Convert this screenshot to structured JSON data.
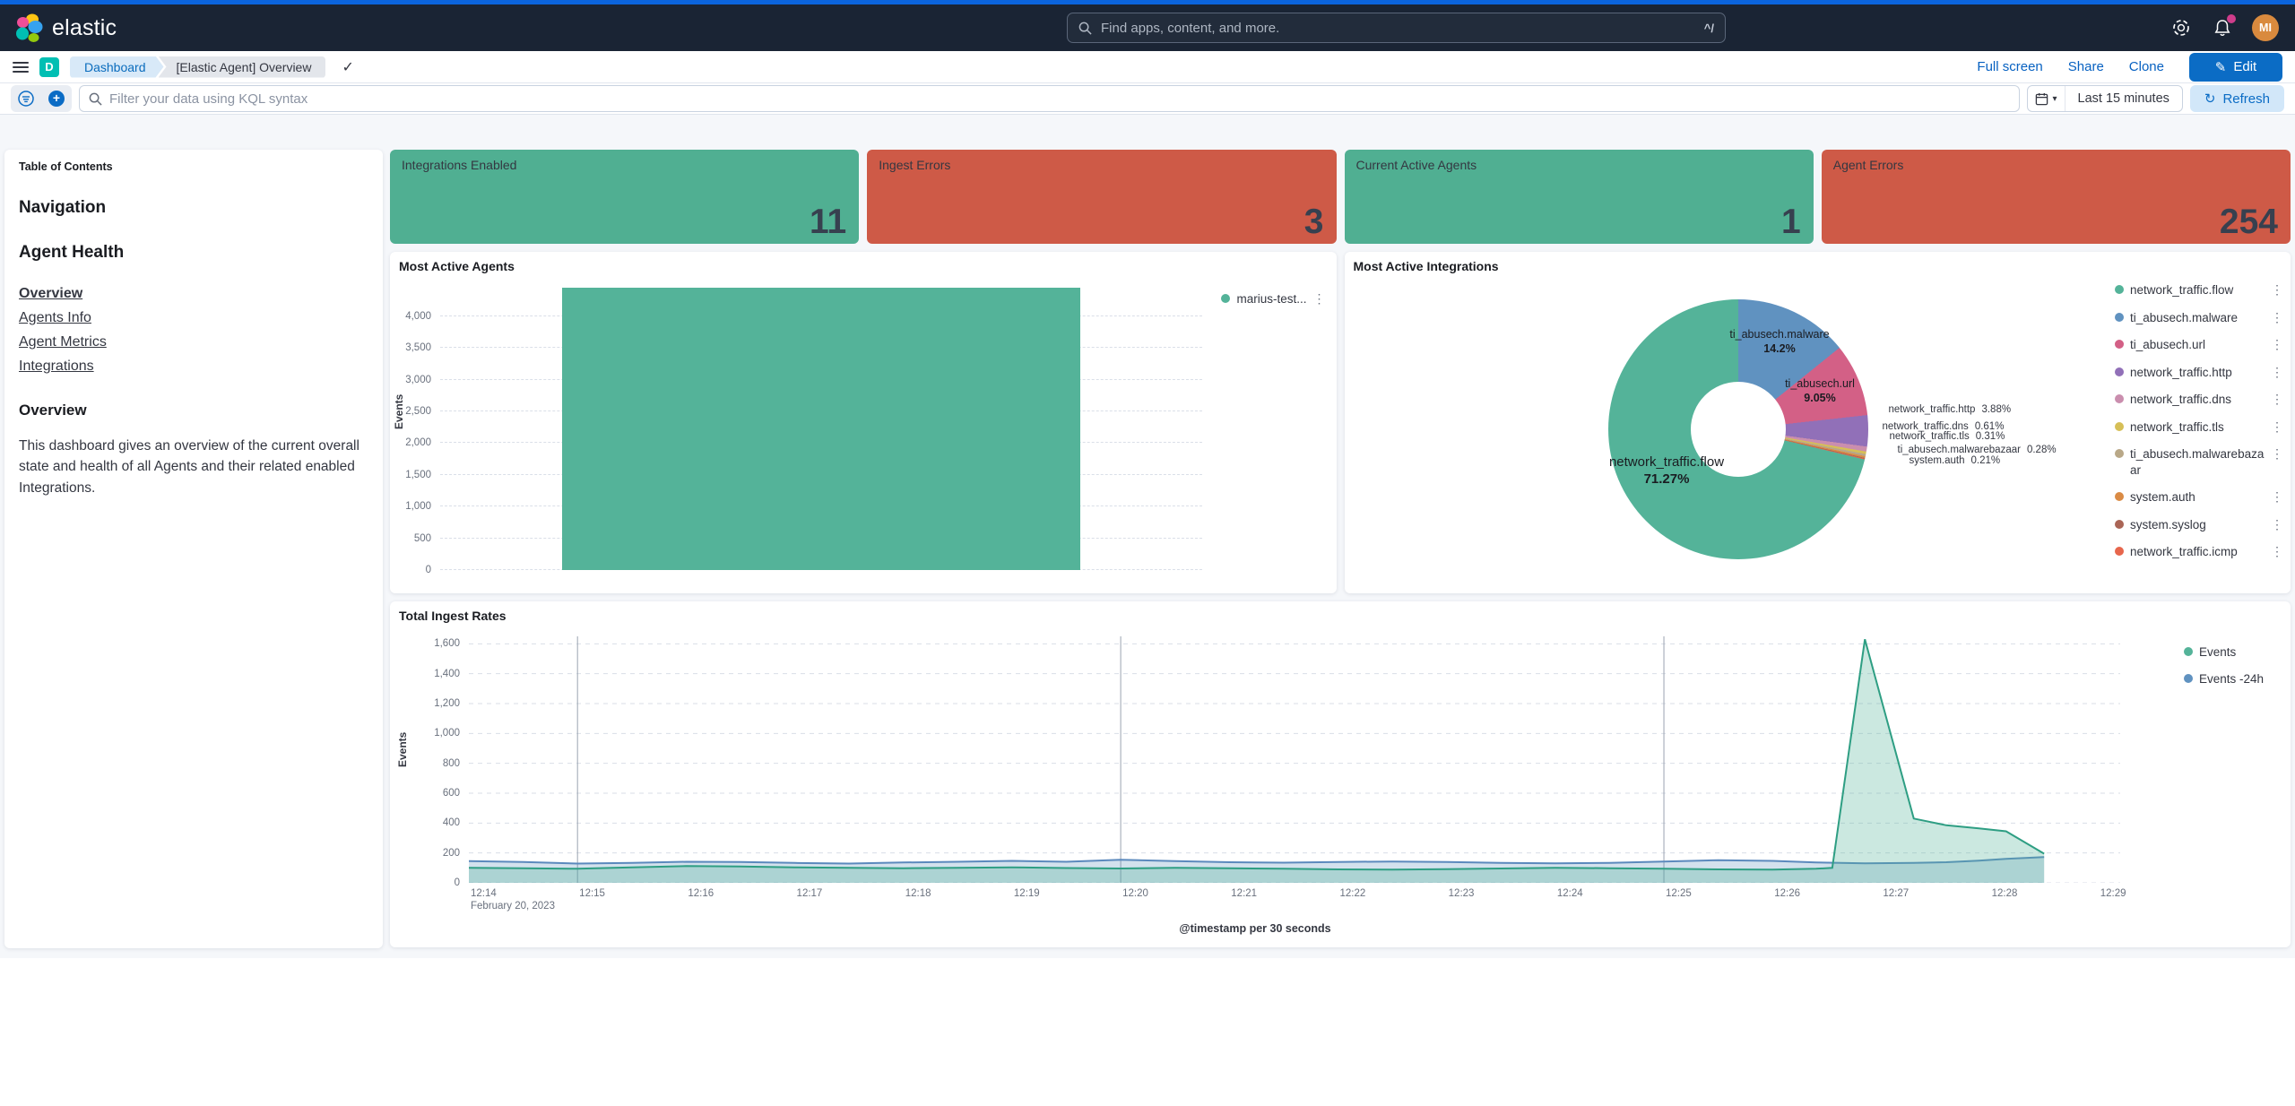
{
  "header": {
    "logo_text": "elastic",
    "search_placeholder": "Find apps, content, and more.",
    "search_shortcut": "^/",
    "avatar_initials": "MI"
  },
  "toolbar": {
    "app_badge": "D",
    "breadcrumbs": [
      "Dashboard",
      "[Elastic Agent] Overview"
    ],
    "actions": [
      "Full screen",
      "Share",
      "Clone"
    ],
    "edit_label": "Edit"
  },
  "filter_bar": {
    "kql_placeholder": "Filter your data using KQL syntax",
    "time_range": "Last 15 minutes",
    "refresh_label": "Refresh"
  },
  "sidebar": {
    "title": "Table of Contents",
    "sections": [
      "Navigation",
      "Agent Health"
    ],
    "links": [
      {
        "label": "Overview",
        "bold": true
      },
      {
        "label": "Agents Info",
        "bold": false
      },
      {
        "label": "Agent Metrics",
        "bold": false
      },
      {
        "label": "Integrations",
        "bold": false
      }
    ],
    "overview_heading": "Overview",
    "overview_text": "This dashboard gives an overview of the current overall state and health of all Agents and their related enabled Integrations."
  },
  "tiles": [
    {
      "label": "Integrations Enabled",
      "value": "11",
      "color": "#50af92"
    },
    {
      "label": "Ingest Errors",
      "value": "3",
      "color": "#ce5a47"
    },
    {
      "label": "Current Active Agents",
      "value": "1",
      "color": "#50af92"
    },
    {
      "label": "Agent Errors",
      "value": "254",
      "color": "#ce5a47"
    }
  ],
  "colors": {
    "primary": "#0b6cc5",
    "header_accent": "#0b64dd",
    "badge_teal": "#00bfb3",
    "notification_pink": "#cf3d8b"
  },
  "chart_data": [
    {
      "type": "bar",
      "title": "Most Active Agents",
      "ylabel": "Events",
      "categories": [
        "marius-test..."
      ],
      "values": [
        4450
      ],
      "ylim": [
        0,
        4450
      ],
      "yticks": [
        0,
        500,
        1000,
        1500,
        2000,
        2500,
        3000,
        3500,
        4000
      ],
      "bar_color": "#54B399",
      "grid": true,
      "legend_position": "right-top",
      "legend": [
        {
          "label": "marius-test...",
          "color": "#54B399"
        }
      ]
    },
    {
      "type": "pie",
      "title": "Most Active Integrations",
      "donut": true,
      "legend_position": "right",
      "slices": [
        {
          "name": "network_traffic.flow",
          "pct": 71.27,
          "color": "#54B399"
        },
        {
          "name": "ti_abusech.malware",
          "pct": 14.2,
          "color": "#6092C0"
        },
        {
          "name": "ti_abusech.url",
          "pct": 9.05,
          "color": "#D36086"
        },
        {
          "name": "network_traffic.http",
          "pct": 3.88,
          "color": "#9170B8"
        },
        {
          "name": "network_traffic.dns",
          "pct": 0.61,
          "color": "#CA8EAE"
        },
        {
          "name": "network_traffic.tls",
          "pct": 0.31,
          "color": "#D6BF57"
        },
        {
          "name": "ti_abusech.malwarebazaar",
          "pct": 0.28,
          "color": "#B9A888"
        },
        {
          "name": "system.auth",
          "pct": 0.21,
          "color": "#DA8B45"
        },
        {
          "name": "system.syslog",
          "pct": 0.1,
          "color": "#AA6556"
        },
        {
          "name": "network_traffic.icmp",
          "pct": 0.09,
          "color": "#E7664C"
        }
      ],
      "draw_order": [
        1,
        2,
        3,
        4,
        5,
        6,
        7,
        8,
        9,
        0
      ],
      "inner_labels": [
        {
          "name": "ti_abusech.malware",
          "pct": "14.2%"
        },
        {
          "name": "ti_abusech.url",
          "pct": "9.05%"
        },
        {
          "name": "network_traffic.flow",
          "pct": "71.27%"
        }
      ],
      "callouts": [
        {
          "label": "network_traffic.http",
          "pct": "3.88%"
        },
        {
          "label": "network_traffic.dns",
          "pct": "0.61%"
        },
        {
          "label": "network_traffic.tls",
          "pct": "0.31%"
        },
        {
          "label": "ti_abusech.malwarebazaar",
          "pct": "0.28%"
        },
        {
          "label": "system.auth",
          "pct": "0.21%"
        }
      ]
    },
    {
      "type": "area",
      "title": "Total Ingest Rates",
      "ylabel": "Events",
      "xlabel": "@timestamp per 30 seconds",
      "x_context": "February 20, 2023",
      "xticks": [
        "12:14",
        "12:15",
        "12:16",
        "12:17",
        "12:18",
        "12:19",
        "12:20",
        "12:21",
        "12:22",
        "12:23",
        "12:24",
        "12:25",
        "12:26",
        "12:27",
        "12:28",
        "12:29"
      ],
      "x_domain_minutes": [
        0,
        15.2
      ],
      "major_vlines_minutes": [
        1,
        6,
        11
      ],
      "yticks": [
        0,
        200,
        400,
        600,
        800,
        1000,
        1200,
        1400,
        1600
      ],
      "ylim": [
        0,
        1650
      ],
      "grid": true,
      "legend_position": "right-top",
      "series": [
        {
          "name": "Events",
          "color": "#2e9e83",
          "fill": "rgba(84,179,153,0.30)",
          "points": [
            [
              0,
              100
            ],
            [
              0.5,
              97
            ],
            [
              1,
              94
            ],
            [
              1.5,
              104
            ],
            [
              2,
              112
            ],
            [
              2.5,
              109
            ],
            [
              3,
              104
            ],
            [
              3.5,
              100
            ],
            [
              4,
              98
            ],
            [
              4.5,
              101
            ],
            [
              5,
              104
            ],
            [
              5.5,
              99
            ],
            [
              6,
              96
            ],
            [
              6.5,
              100
            ],
            [
              7,
              98
            ],
            [
              7.5,
              94
            ],
            [
              8,
              90
            ],
            [
              8.5,
              88
            ],
            [
              9,
              91
            ],
            [
              9.5,
              96
            ],
            [
              10,
              101
            ],
            [
              10.5,
              98
            ],
            [
              11,
              94
            ],
            [
              11.5,
              90
            ],
            [
              12,
              88
            ],
            [
              12.4,
              94
            ],
            [
              12.55,
              100
            ],
            [
              12.85,
              1630
            ],
            [
              13.3,
              430
            ],
            [
              13.6,
              385
            ],
            [
              13.9,
              365
            ],
            [
              14.15,
              345
            ],
            [
              14.5,
              195
            ]
          ]
        },
        {
          "name": "Events -24h",
          "color": "#5b89bd",
          "fill": "rgba(96,146,192,0.28)",
          "points": [
            [
              0,
              146
            ],
            [
              0.5,
              139
            ],
            [
              1,
              129
            ],
            [
              1.5,
              133
            ],
            [
              2,
              141
            ],
            [
              2.5,
              139
            ],
            [
              3,
              133
            ],
            [
              3.5,
              129
            ],
            [
              4,
              136
            ],
            [
              4.5,
              141
            ],
            [
              5,
              147
            ],
            [
              5.5,
              141
            ],
            [
              6,
              155
            ],
            [
              6.5,
              146
            ],
            [
              7,
              138
            ],
            [
              7.5,
              135
            ],
            [
              8,
              140
            ],
            [
              8.5,
              143
            ],
            [
              9,
              139
            ],
            [
              9.5,
              133
            ],
            [
              10,
              130
            ],
            [
              10.5,
              134
            ],
            [
              11,
              143
            ],
            [
              11.5,
              152
            ],
            [
              12,
              147
            ],
            [
              12.4,
              136
            ],
            [
              12.85,
              130
            ],
            [
              13.3,
              133
            ],
            [
              13.6,
              138
            ],
            [
              13.9,
              148
            ],
            [
              14.15,
              160
            ],
            [
              14.5,
              172
            ]
          ]
        }
      ]
    }
  ]
}
